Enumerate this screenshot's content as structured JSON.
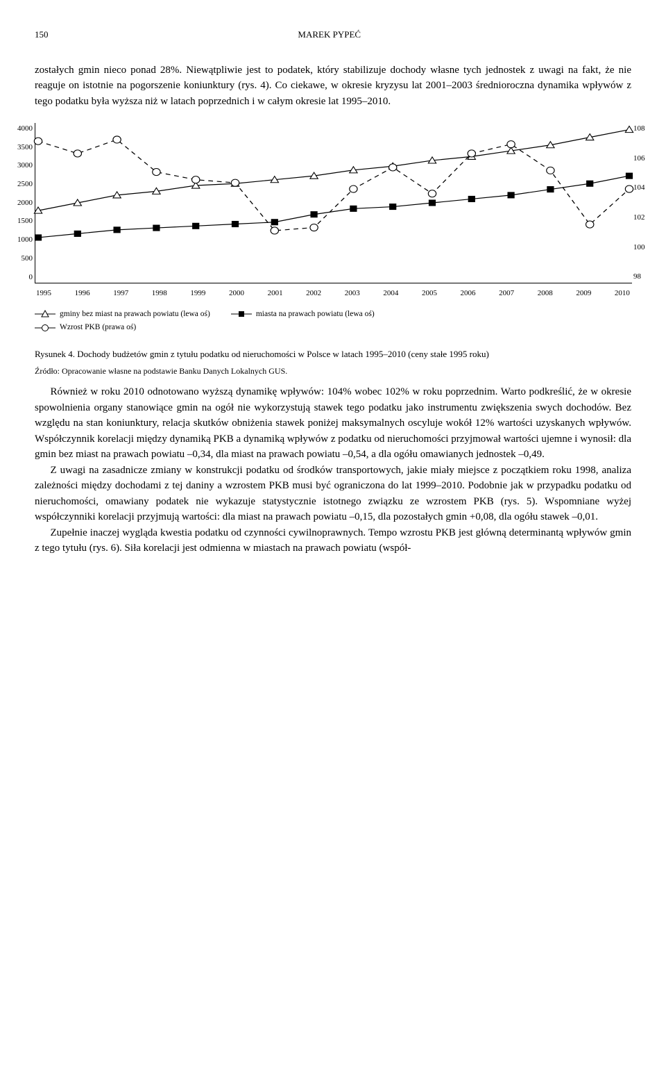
{
  "page_number": "150",
  "running_head": "MAREK PYPEĆ",
  "para_top": "zostałych gmin nieco ponad 28%. Niewątpliwie jest to podatek, który stabilizuje dochody własne tych jednostek z uwagi na fakt, że nie reaguje on istotnie na pogorszenie koniunktury (rys. 4). Co ciekawe, w okresie kryzysu lat 2001–2003 średnioroczna dynamika wpływów z tego podatku była wyższa niż w latach poprzednich i w całym okresie lat 1995–2010.",
  "chart": {
    "type": "line",
    "left_axis": {
      "ticks": [
        "4000",
        "3500",
        "3000",
        "2500",
        "2000",
        "1500",
        "1000",
        "500",
        "0"
      ],
      "min": 0,
      "max": 4000
    },
    "right_axis": {
      "ticks": [
        "108",
        "106",
        "104",
        "102",
        "100",
        "98"
      ],
      "min": 98,
      "max": 108
    },
    "x_categories": [
      "1995",
      "1996",
      "1997",
      "1998",
      "1999",
      "2000",
      "2001",
      "2002",
      "2003",
      "2004",
      "2005",
      "2006",
      "2007",
      "2008",
      "2009",
      "2010"
    ],
    "series": [
      {
        "name": "gminy bez miast na prawach powiatu (lewa oś)",
        "axis": "left",
        "style": "triangle",
        "values": [
          1800,
          2000,
          2200,
          2300,
          2450,
          2500,
          2600,
          2700,
          2850,
          2950,
          3100,
          3200,
          3350,
          3500,
          3700,
          3900
        ]
      },
      {
        "name": "miasta na prawach powiatu (lewa oś)",
        "axis": "left",
        "style": "square",
        "values": [
          1100,
          1200,
          1300,
          1350,
          1400,
          1450,
          1500,
          1700,
          1850,
          1900,
          2000,
          2100,
          2200,
          2350,
          2500,
          2700
        ]
      },
      {
        "name": "Wzrost PKB (prawa oś)",
        "axis": "right",
        "style": "circle",
        "values": [
          107.0,
          106.2,
          107.1,
          105.0,
          104.5,
          104.3,
          101.2,
          101.4,
          103.9,
          105.3,
          103.6,
          106.2,
          106.8,
          105.1,
          101.6,
          103.9
        ]
      }
    ],
    "legend": {
      "item1": "gminy bez miast na prawach powiatu (lewa oś)",
      "item2": "miasta na prawach powiatu (lewa oś)",
      "item3": "Wzrost PKB (prawa oś)"
    },
    "line_color": "#000000",
    "background_color": "#ffffff"
  },
  "figure_caption": "Rysunek 4. Dochody budżetów gmin z tytułu podatku od nieruchomości w Polsce w latach 1995–2010 (ceny stałe 1995 roku)",
  "figure_source": "Źródło: Opracowanie własne na podstawie Banku Danych Lokalnych GUS.",
  "para_1": "Również w roku 2010 odnotowano wyższą dynamikę wpływów: 104% wobec 102% w roku poprzednim. Warto podkreślić, że w okresie spowolnienia organy stanowiące gmin na ogół nie wykorzystują stawek tego podatku jako instrumentu zwiększenia swych dochodów. Bez względu na stan koniunktury, relacja skutków obniżenia stawek poniżej maksymalnych oscyluje wokół 12% wartości uzyskanych wpływów. Współczynnik korelacji między dynamiką PKB a dynamiką wpływów z podatku od nieruchomości przyjmował wartości ujemne i wynosił: dla gmin bez miast na prawach powiatu –0,34, dla miast na prawach powiatu –0,54, a dla ogółu omawianych jednostek –0,49.",
  "para_2": "Z uwagi na zasadnicze zmiany w konstrukcji podatku od środków transportowych, jakie miały miejsce z początkiem roku 1998, analiza zależności między dochodami z tej daniny a wzrostem PKB musi być ograniczona do lat 1999–2010. Podobnie jak w przypadku podatku od nieruchomości, omawiany podatek nie wykazuje statystycznie istotnego związku ze wzrostem PKB (rys. 5). Wspomniane wyżej współczynniki korelacji przyjmują wartości: dla miast na prawach powiatu –0,15, dla pozostałych gmin +0,08, dla ogółu stawek –0,01.",
  "para_3": "Zupełnie inaczej wygląda kwestia podatku od czynności cywilnoprawnych. Tempo wzrostu PKB jest główną determinantą wpływów gmin z tego tytułu (rys. 6). Siła korelacji jest odmienna w miastach na prawach powiatu (współ-"
}
